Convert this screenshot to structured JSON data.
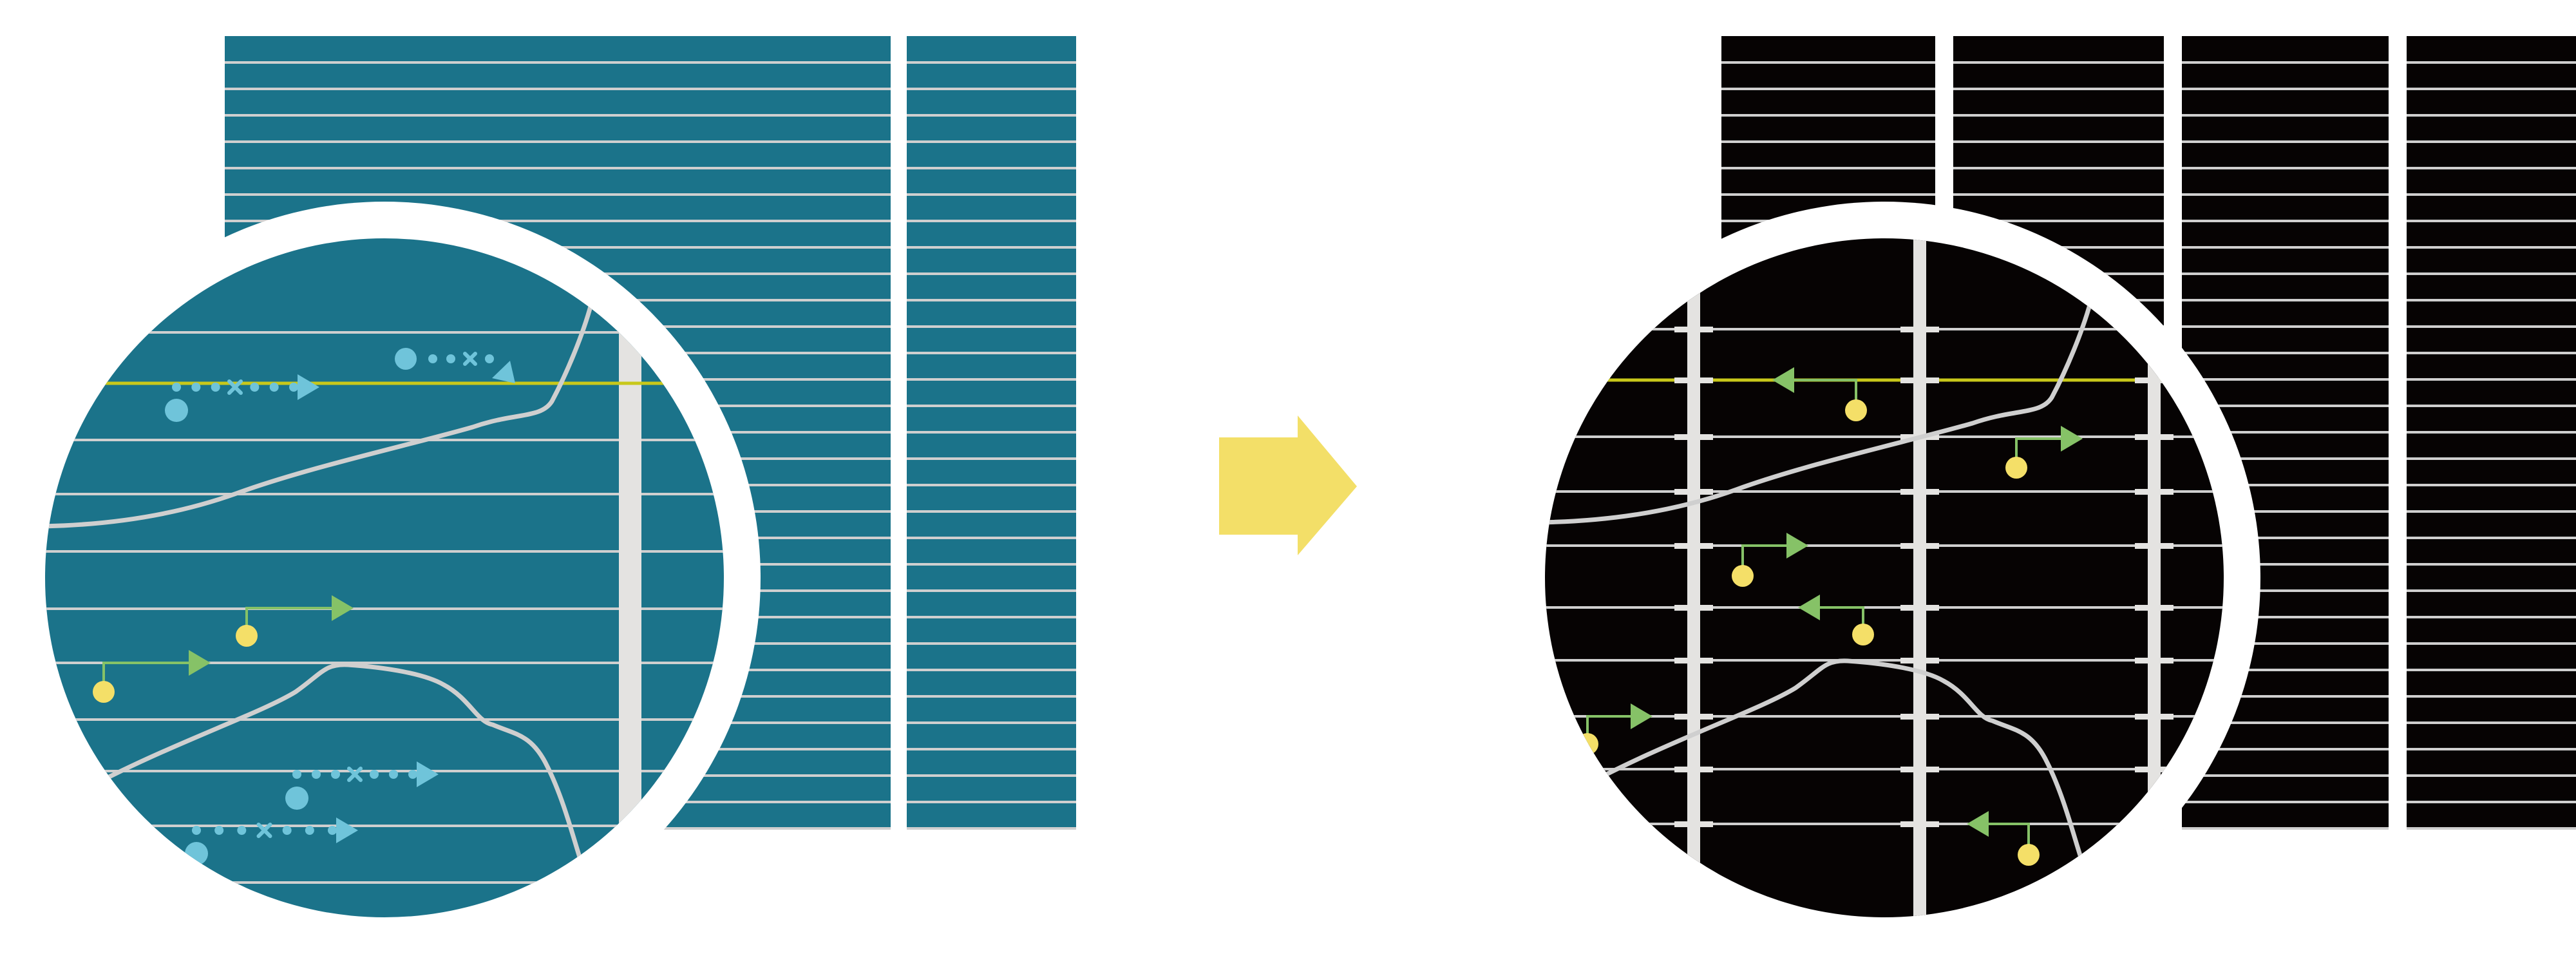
{
  "colors": {
    "before_panel": "#1b738a",
    "after_panel": "#060303",
    "grid_line": "#cfcfcf",
    "vertical_bar": "#e4e3e1",
    "highlight_line": "#c8c81a",
    "blue_marker": "#6fc4da",
    "green_arrow": "#86c267",
    "yellow_dot": "#f4df68",
    "transition_arrow": "#f3df68",
    "ring": "#ffffff"
  },
  "icons": {
    "transition": "right-arrow-icon",
    "blue_marker": "dotted-arrow-icon",
    "green_marker": "pin-arrow-icon"
  }
}
